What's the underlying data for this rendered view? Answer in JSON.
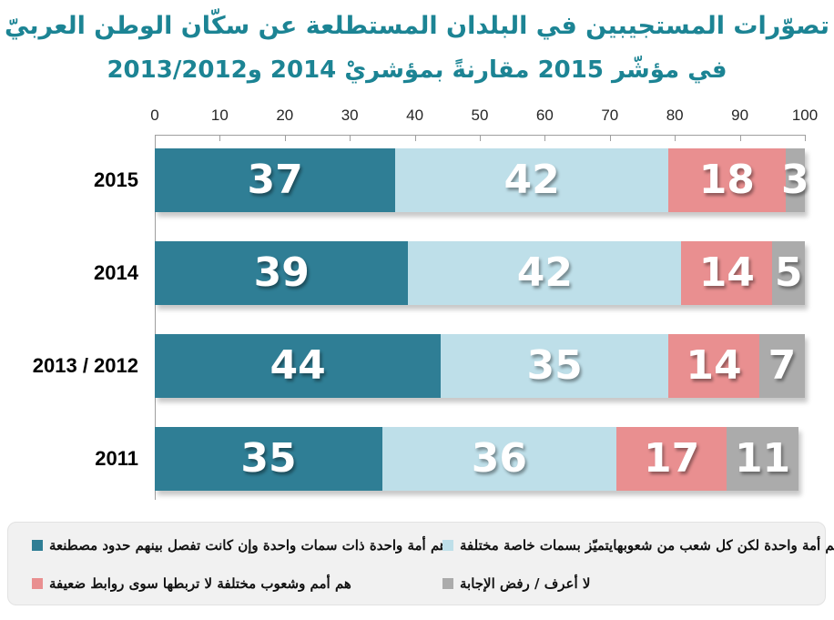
{
  "chart_data": {
    "type": "bar",
    "orientation": "horizontal",
    "stacked": true,
    "title_line1": "تصوّرات المستجيبين في البلدان المستطلعة عن سكّان الوطن العربيّ",
    "title_line2": "في مؤشّر 2015 مقارنةً بمؤشريْ 2014 و2013/2012",
    "categories": [
      "2015",
      "2014",
      "2013 /  2012",
      "2011"
    ],
    "series": [
      {
        "name": "هم أمة واحدة ذات سمات واحدة وإن كانت تفصل بينهم حدود مصطنعة",
        "color": "#2F7E95",
        "values": [
          37,
          39,
          44,
          35
        ]
      },
      {
        "name": "هم أمة واحدة لكن كل شعب من شعوبهايتميّز بسمات خاصة مختلفة",
        "color": "#BEDFE9",
        "values": [
          42,
          42,
          35,
          36
        ]
      },
      {
        "name": "هم أمم وشعوب مختلفة لا تربطها سوى روابط ضعيفة",
        "color": "#E98F90",
        "values": [
          18,
          14,
          14,
          17
        ]
      },
      {
        "name": "لا أعرف /  رفض الإجابة",
        "color": "#ABABAB",
        "values": [
          3,
          5,
          7,
          11
        ]
      }
    ],
    "xlim": [
      0,
      100
    ],
    "x_ticks": [
      0,
      10,
      20,
      30,
      40,
      50,
      60,
      70,
      80,
      90,
      100
    ],
    "grid": false,
    "axis_position": "top",
    "legend_position": "bottom",
    "value_labels": "inside"
  },
  "colors": {
    "title": "#1C8494",
    "axis_line": "#9F9F9F",
    "tick_text": "#262626",
    "category_text": "#000000",
    "bar_value_text": "#FFFFFF",
    "legend_bg": "#F1F1F1",
    "legend_border": "#E2E2E2",
    "legend_text": "#111111",
    "background": "#FFFFFF"
  }
}
